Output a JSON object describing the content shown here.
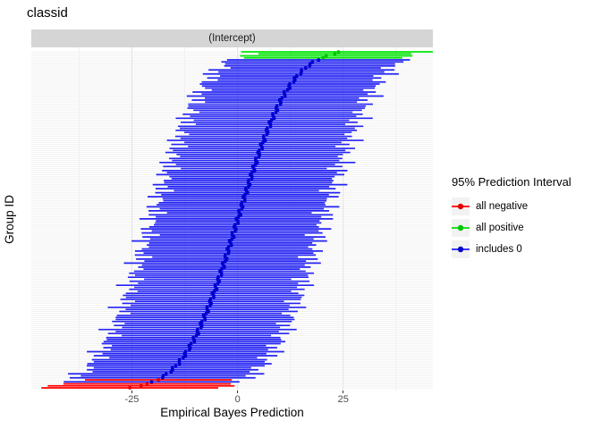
{
  "title": "classid",
  "facet": {
    "label": "(Intercept)"
  },
  "axes": {
    "x_title": "Empirical Bayes Prediction",
    "y_title": "Group ID",
    "x_tick_labels": [
      "-25",
      "0",
      "25"
    ]
  },
  "legend": {
    "title": "95% Prediction Interval",
    "items": [
      {
        "label": "all negative",
        "color": "#ff0000",
        "dot_color": "#e60000"
      },
      {
        "label": "all positive",
        "color": "#00e405",
        "dot_color": "#00c400"
      },
      {
        "label": "includes 0",
        "color": "#2222f2",
        "dot_color": "#0000cd"
      }
    ]
  },
  "chart_data": {
    "type": "caterpillar-errorbar",
    "title": "classid",
    "facet": "(Intercept)",
    "xlabel": "Empirical Bayes Prediction",
    "ylabel": "Group ID",
    "orientation": "horizontal-intervals, groups sorted by estimate (ascending bottom to top)",
    "xlim": [
      -48.8,
      46.2
    ],
    "x_ticks": [
      -25,
      0,
      25
    ],
    "x_minor_gridlines": [
      -37.5,
      -12.5,
      12.5,
      37.5
    ],
    "grid": "light grey horizontal line per group, light grey vertical lines at ticks",
    "n_groups": 168,
    "y_tick_labels_shown": false,
    "estimate_model": {
      "note": "estimates follow an S-shaped normal-quantile curve read from the plot",
      "distribution": "normal-quantile",
      "scale": 9.8,
      "clamp": [
        -25.5,
        23.5
      ],
      "wiggle_amp": 0.4,
      "wiggle_freq": 1.7
    },
    "halfwidth_model": {
      "note": "95% interval half-widths, approx 17-23 data units",
      "base": 20.3,
      "amp1": 1.9,
      "freq1": 2.87,
      "amp2": 1.3,
      "freq2": 1.13,
      "phase2": 0.5
    },
    "categories": {
      "all_negative": {
        "rule": "upper < 0",
        "color": "#ff0000",
        "dot_color": "#e60000",
        "approx_rows": "bottom ~4"
      },
      "all_positive": {
        "rule": "lower > 0",
        "color": "#00e405",
        "dot_color": "#00c400",
        "approx_rows": "top ~5"
      },
      "includes_0": {
        "rule": "interval spans 0",
        "color": "#2222f2",
        "dot_color": "#0000cd"
      }
    },
    "example_extremes": {
      "bottom_group": {
        "lower": -46.4,
        "estimate": -25.5,
        "upper": -4.6
      },
      "top_group": {
        "lower": 0.9,
        "estimate": 23.5,
        "upper": 45.5
      }
    },
    "bar_stroke_px": 1.7,
    "dot_radius_px": 1.9,
    "gridline_colors": {
      "row": "#f1f1f1",
      "major": "#e3e3e3",
      "minor": "#f0f0f0"
    }
  }
}
